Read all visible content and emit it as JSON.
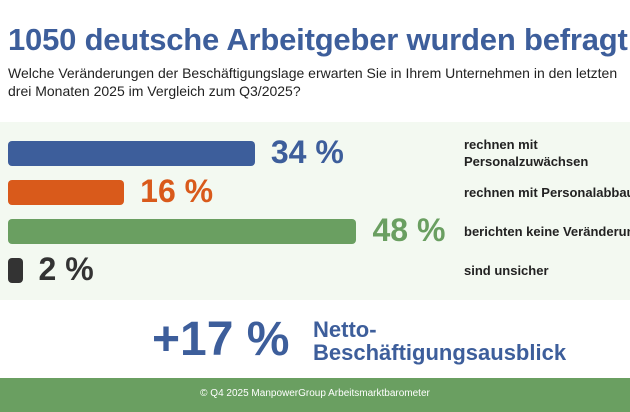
{
  "chart_data": {
    "type": "bar",
    "orientation": "horizontal",
    "title": "1050 deutsche Arbeitgeber wurden befragt",
    "subtitle": "Welche Veränderungen der Beschäftigungslage erwarten Sie in Ihrem Unternehmen in den letzten drei Monaten 2025 im Vergleich zum Q3/2025?",
    "categories": [
      "rechnen mit Personalzuwächsen",
      "rechnen mit Personalabbau",
      "berichten keine Veränderung",
      "sind unsicher"
    ],
    "values": [
      34,
      16,
      48,
      2
    ],
    "value_labels": [
      "34 %",
      "16 %",
      "48 %",
      "2 %"
    ],
    "colors": [
      "#3d5e9b",
      "#d95a1b",
      "#6a9f61",
      "#333333"
    ],
    "net_value": 17,
    "net_label": "+17 %",
    "net_text": "Netto-Beschäftigungsausblick",
    "footer": "© Q4 2025 ManpowerGroup Arbeitsmarktbarometer"
  }
}
